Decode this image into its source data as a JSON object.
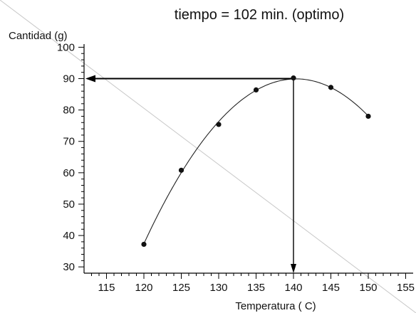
{
  "chart_data": {
    "type": "scatter",
    "title": "tiempo = 102 min. (optimo)",
    "xlabel": "Temperatura  ( C)",
    "ylabel": "Cantidad  (g)",
    "xlim": [
      112,
      156
    ],
    "ylim": [
      28,
      101
    ],
    "xticks": [
      115,
      120,
      125,
      130,
      135,
      140,
      145,
      150,
      155
    ],
    "yticks": [
      30,
      40,
      50,
      60,
      70,
      80,
      90,
      100
    ],
    "x_minor_step": 1,
    "y_minor_step": 2,
    "points": [
      {
        "x": 120,
        "y": 37.2
      },
      {
        "x": 125,
        "y": 60.8
      },
      {
        "x": 130,
        "y": 75.4
      },
      {
        "x": 135,
        "y": 86.4
      },
      {
        "x": 140,
        "y": 90.2
      },
      {
        "x": 145,
        "y": 87.2
      },
      {
        "x": 150,
        "y": 78.0
      }
    ],
    "fit_curve": {
      "type": "quadratic",
      "x_range": [
        120,
        150
      ],
      "optimum_x": 140.5
    },
    "annotation": {
      "x": 140,
      "y": 90
    },
    "colors": {
      "axis": "#000000",
      "curve": "#222222",
      "marker": "#111111",
      "diagonal": "#c8c8c8"
    }
  }
}
